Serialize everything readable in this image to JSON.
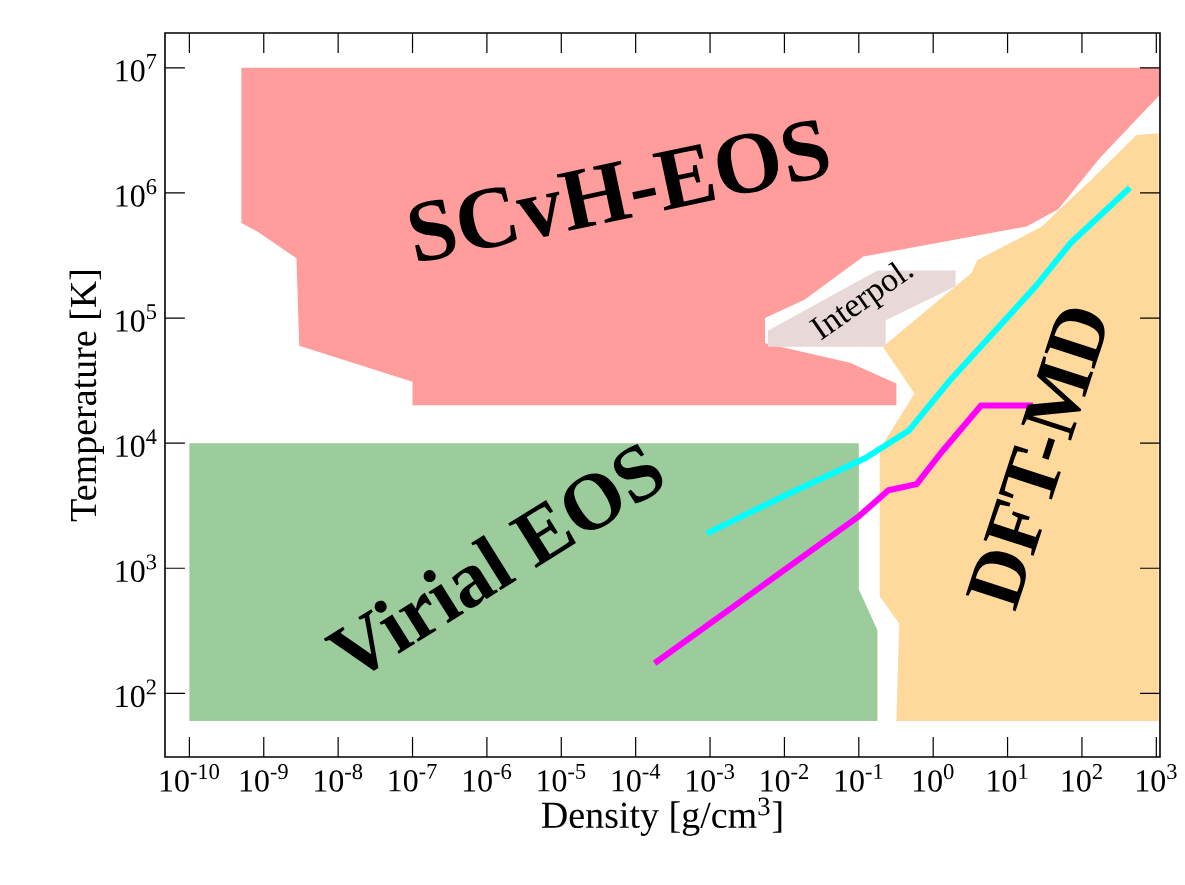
{
  "chart_data": {
    "type": "area",
    "log": "xy",
    "marker": "none",
    "xlabel": "Density [g/cm$^{3}$]",
    "ylabel": "Temperature [K]",
    "xlim": [
      4.7e-11,
      1120.0
    ],
    "ylim": [
      31,
      19000000.0
    ],
    "xticks": [
      {
        "value": 1e-10,
        "label": "10$^{-10}$"
      },
      {
        "value": 1e-09,
        "label": "10$^{-9}$"
      },
      {
        "value": 1e-08,
        "label": "10$^{-8}$"
      },
      {
        "value": 1e-07,
        "label": "10$^{-7}$"
      },
      {
        "value": 1e-06,
        "label": "10$^{-6}$"
      },
      {
        "value": 1e-05,
        "label": "10$^{-5}$"
      },
      {
        "value": 0.0001,
        "label": "10$^{-4}$"
      },
      {
        "value": 0.001,
        "label": "10$^{-3}$"
      },
      {
        "value": 0.01,
        "label": "10$^{-2}$"
      },
      {
        "value": 0.1,
        "label": "10$^{-1}$"
      },
      {
        "value": 1,
        "label": "10$^{0}$"
      },
      {
        "value": 10,
        "label": "10$^{1}$"
      },
      {
        "value": 100,
        "label": "10$^{2}$"
      },
      {
        "value": 1000,
        "label": "10$^{3}$"
      }
    ],
    "yticks": [
      {
        "value": 100,
        "label": "10$^{2}$"
      },
      {
        "value": 1000,
        "label": "10$^{3}$"
      },
      {
        "value": 10000,
        "label": "10$^{4}$"
      },
      {
        "value": 100000,
        "label": "10$^{5}$"
      },
      {
        "value": 1000000,
        "label": "10$^{6}$"
      },
      {
        "value": 10000000,
        "label": "10$^{7}$"
      }
    ],
    "series": [
      {
        "color": "#ff9c9c",
        "x": [
          5e-10,
          1100.0,
          1100.0,
          790.0,
          174.0,
          48,
          18,
          0.115,
          0.0186,
          0.0055,
          0.0055,
          0.076,
          0.32,
          0.32,
          1e-07,
          1e-07,
          3e-09,
          2.75e-09,
          8.3e-10,
          5e-10
        ],
        "values": [
          10000000.0,
          10000000.0,
          6000000.0,
          4900000.0,
          1900000.0,
          740000.0,
          540000.0,
          310000.0,
          140000.0,
          100000.0,
          63000.0,
          44000.0,
          30000.0,
          20000.0,
          20000.0,
          31000.0,
          60000.0,
          300000.0,
          490000.0,
          575000.0
        ]
      },
      {
        "color": "#9ccc9c",
        "x": [
          1e-10,
          0.1,
          0.1,
          0.178,
          0.178,
          1e-10
        ],
        "values": [
          10000.0,
          10000.0,
          680,
          320,
          60,
          60
        ]
      },
      {
        "color": "#ffd89c",
        "x": [
          1070.0,
          1070.0,
          0.32,
          0.35,
          0.19,
          0.19,
          0.56,
          0.21,
          3.3,
          3.9,
          29,
          48,
          130,
          540
        ],
        "values": [
          3000000.0,
          60,
          60,
          360,
          600,
          8900.0,
          25000.0,
          59000.0,
          230000.0,
          290000.0,
          540000.0,
          720000.0,
          1260000.0,
          2900000.0
        ]
      },
      {
        "color": "#e8d8d8",
        "x": [
          0.006,
          0.006,
          0.178,
          2.0,
          2.0,
          0.23,
          0.23
        ],
        "values": [
          59000.0,
          79000.0,
          240000.0,
          240000.0,
          180000.0,
          96000.0,
          59000.0
        ]
      },
      {
        "type": "line",
        "color": "#00ffff",
        "x": [
          0.00091,
          0.01,
          0.123,
          0.47,
          1.7,
          24,
          71,
          440
        ],
        "values": [
          1900.0,
          3800.0,
          7600.0,
          12600.0,
          32000.0,
          180000.0,
          400000.0,
          1100000.0
        ]
      },
      {
        "type": "line",
        "color": "#ff00ff",
        "x": [
          0.00018,
          0.1,
          0.25,
          0.6,
          1.26,
          4.4,
          22
        ],
        "values": [
          174,
          2600.0,
          4200.0,
          4700.0,
          8300.0,
          20000.0,
          20000.0
        ]
      }
    ],
    "annotations": [
      "SCvH-EOS",
      "Virial EOS",
      "DFT-MD",
      "Interpol."
    ]
  }
}
